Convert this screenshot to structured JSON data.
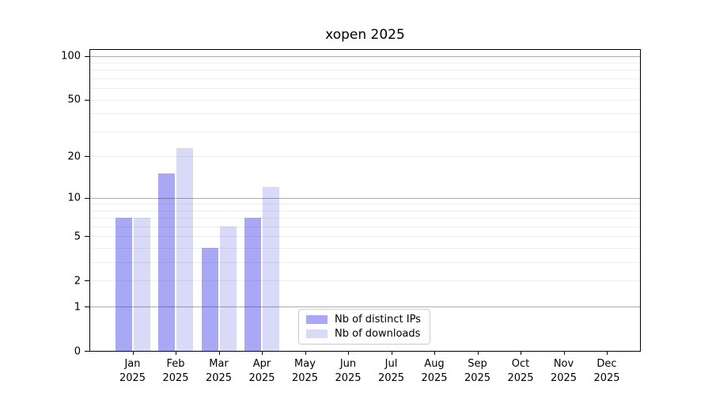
{
  "chart_data": {
    "type": "bar",
    "title": "xopen 2025",
    "categories": [
      "Jan",
      "Feb",
      "Mar",
      "Apr",
      "May",
      "Jun",
      "Jul",
      "Aug",
      "Sep",
      "Oct",
      "Nov",
      "Dec"
    ],
    "year_label": "2025",
    "series": [
      {
        "name": "Nb of distinct IPs",
        "color": "#a8a8f4",
        "values": [
          7,
          15,
          4,
          7,
          0,
          0,
          0,
          0,
          0,
          0,
          0,
          0
        ]
      },
      {
        "name": "Nb of downloads",
        "color": "#d9d9f8",
        "values": [
          7,
          23,
          6,
          12,
          0,
          0,
          0,
          0,
          0,
          0,
          0,
          0
        ]
      }
    ],
    "yscale": "log1p",
    "ylim": [
      0,
      110
    ],
    "yticks": [
      0,
      1,
      2,
      5,
      10,
      20,
      50,
      100
    ],
    "major_gridlines": [
      1,
      10,
      100
    ],
    "minor_gridlines": [
      2,
      3,
      4,
      5,
      6,
      7,
      8,
      9,
      20,
      30,
      40,
      50,
      60,
      70,
      80,
      90
    ],
    "legend_position": "lower-center",
    "grid": true,
    "frame_color": "#000000",
    "legend_border_color": "#cccccc"
  }
}
